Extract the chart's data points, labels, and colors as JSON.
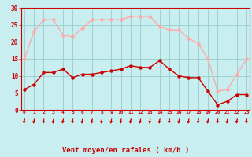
{
  "x": [
    0,
    1,
    2,
    3,
    4,
    5,
    6,
    7,
    8,
    9,
    10,
    11,
    12,
    13,
    14,
    15,
    16,
    17,
    18,
    19,
    20,
    21,
    22,
    23
  ],
  "wind_avg": [
    6,
    7.5,
    11,
    11,
    12,
    9.5,
    10.5,
    10.5,
    11,
    11.5,
    12,
    13,
    12.5,
    12.5,
    14.5,
    12,
    10,
    9.5,
    9.5,
    5.5,
    1.5,
    2.5,
    4.5,
    4.5
  ],
  "wind_gust": [
    15,
    23,
    26.5,
    26.5,
    22,
    21.5,
    24,
    26.5,
    26.5,
    26.5,
    26.5,
    27.5,
    27.5,
    27.5,
    24.5,
    23.5,
    23.5,
    21,
    19.5,
    15,
    5.5,
    6,
    10.5,
    15
  ],
  "line_avg_color": "#cc0000",
  "line_gust_color": "#ffaaaa",
  "bg_color": "#c8eef0",
  "grid_color": "#99cccc",
  "axis_color": "#cc0000",
  "tick_color": "#cc0000",
  "label_color": "#cc0000",
  "xlabel": "Vent moyen/en rafales ( km/h )",
  "ylim": [
    0,
    30
  ],
  "yticks": [
    0,
    5,
    10,
    15,
    20,
    25,
    30
  ],
  "xlim": [
    -0.3,
    23.3
  ]
}
